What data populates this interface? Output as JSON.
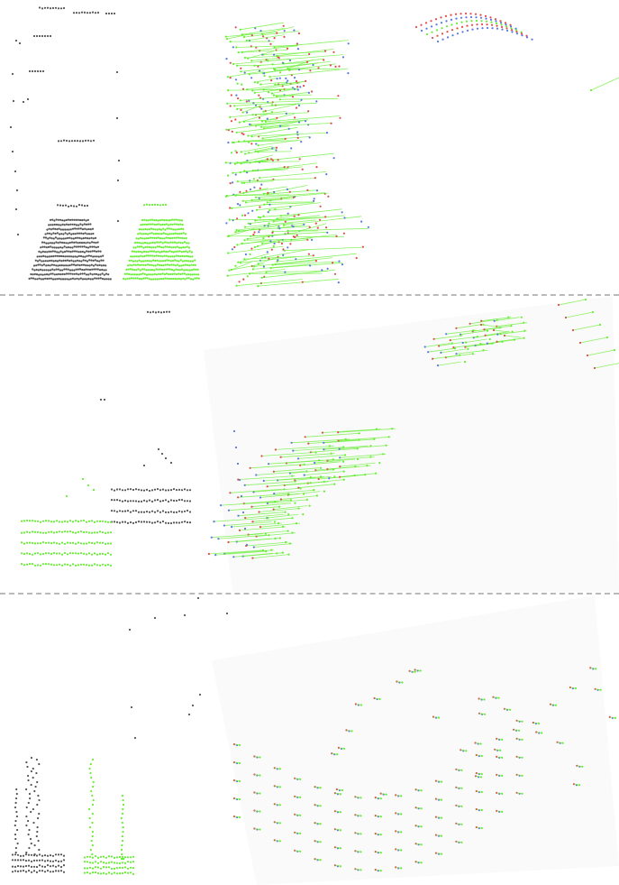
{
  "figure": {
    "colors": {
      "source_points": "#555555",
      "target_points": "#66ee33",
      "match_lines": "#66ee33",
      "point_red": "#e34a4a",
      "point_blue": "#5a78e0",
      "divider": "#b9b9b9",
      "projection_background": "#fafafa"
    },
    "panels": [
      {
        "id": "top",
        "style": "dashed-separator-below"
      },
      {
        "id": "middle",
        "style": "dashed-separator-below"
      },
      {
        "id": "bottom",
        "style": "none"
      }
    ]
  }
}
